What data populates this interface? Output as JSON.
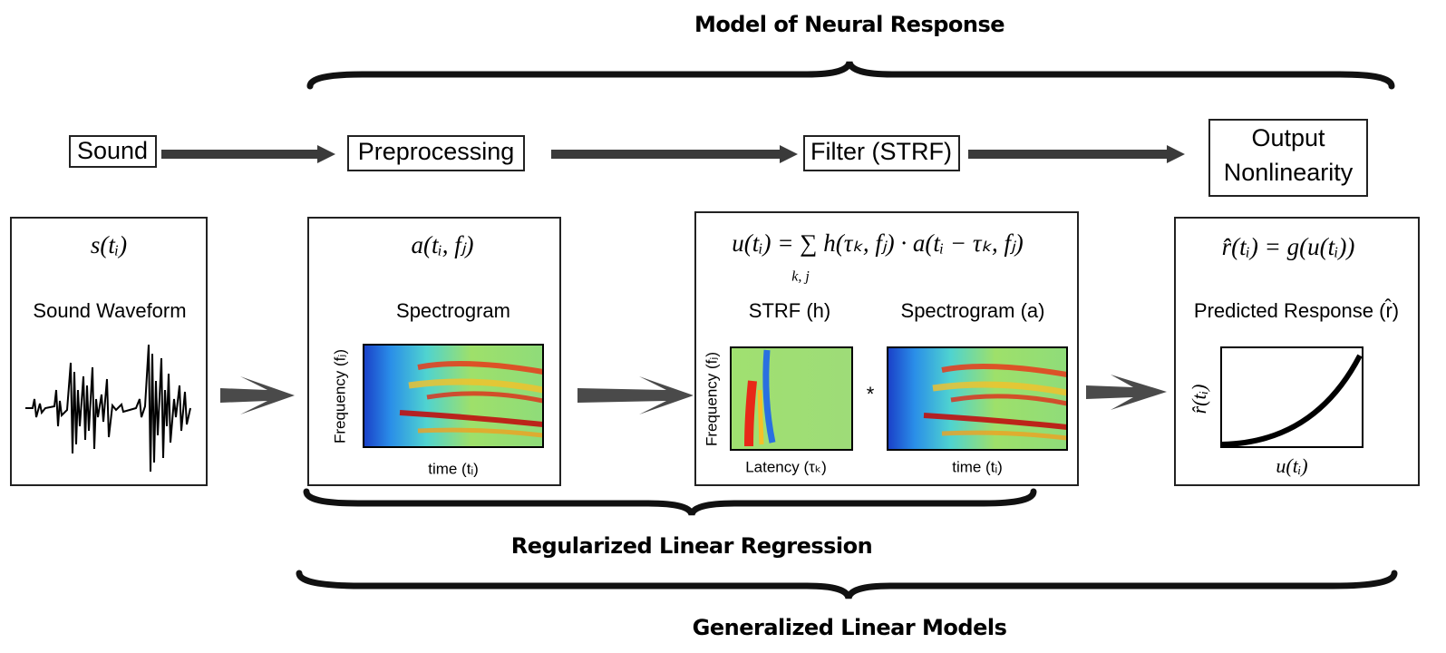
{
  "title": "Model of Neural Response",
  "stages": {
    "sound": "Sound",
    "preprocessing": "Preprocessing",
    "filter": "Filter (STRF)",
    "output": [
      "Output",
      "Nonlinearity"
    ]
  },
  "panels": {
    "waveform": {
      "formula": "s(tᵢ)",
      "label": "Sound Waveform"
    },
    "spectrogram": {
      "formula": "a(tᵢ, fⱼ)",
      "label": "Spectrogram",
      "y_label": "Frequency (fⱼ)",
      "x_label": "time (tᵢ)"
    },
    "filter": {
      "formula": "u(tᵢ) = ∑ h(τₖ, fⱼ) · a(tᵢ − τₖ, fⱼ)",
      "sum_index": "k, j",
      "strf_label": "STRF (h)",
      "spec_label": "Spectrogram (a)",
      "strf_y_label": "Frequency (fⱼ)",
      "strf_x_label": "Latency (τₖ)",
      "spec_x_label": "time (tᵢ)",
      "operator": "*"
    },
    "output": {
      "formula": "r̂(tᵢ) = g(u(tᵢ))",
      "label": "Predicted Response (r̂)",
      "y_label": "r̂(tᵢ)",
      "x_label": "u(tᵢ)"
    }
  },
  "bottom": {
    "regression": "Regularized Linear Regression",
    "glm": "Generalized Linear Models"
  }
}
